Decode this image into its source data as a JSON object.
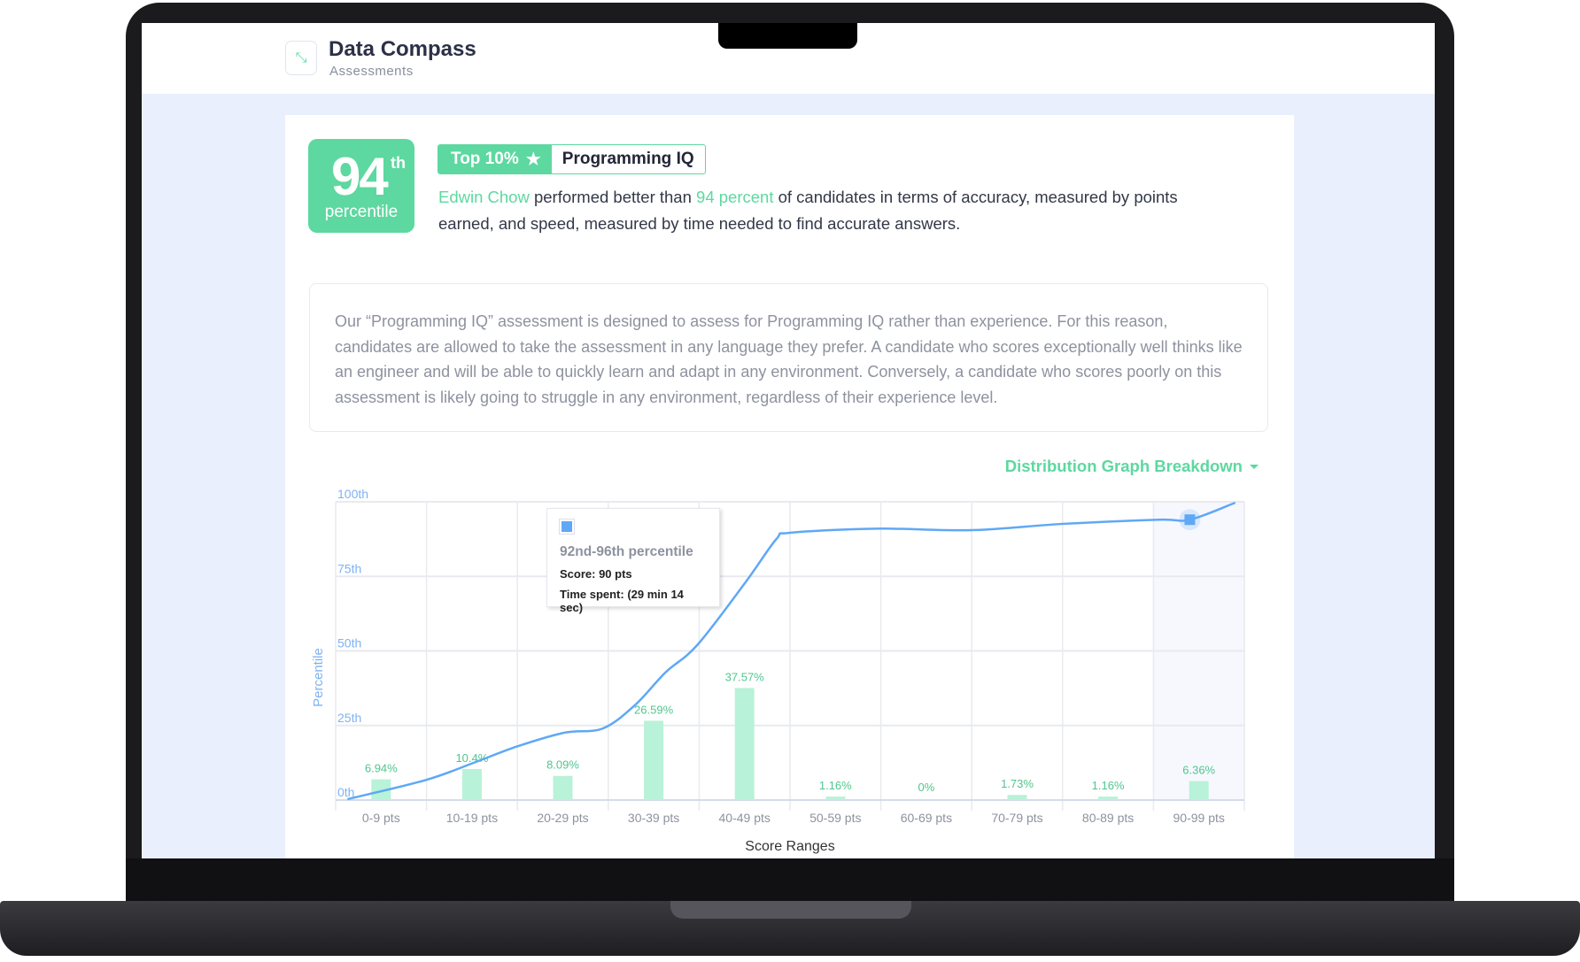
{
  "app": {
    "title": "Data Compass",
    "subtitle": "Assessments",
    "logo_icon": "compass-arrows-icon"
  },
  "result": {
    "percentile_number": "94",
    "percentile_suffix": "th",
    "percentile_label": "percentile",
    "tag_top": "Top 10%",
    "tag_icon": "star-icon",
    "assessment_name": "Programming IQ",
    "candidate_name": "Edwin Chow",
    "summary_part1": " performed better than ",
    "summary_highlight": "94 percent",
    "summary_part2": " of candidates in terms of accuracy, measured by points earned, and speed, measured by time needed to find accurate answers."
  },
  "description": "Our “Programming IQ” assessment is designed to assess for Programming IQ rather than experience. For this reason, candidates are allowed to take the assessment in any language they prefer. A candidate who scores exceptionally well thinks like an engineer and will be able to quickly learn and adapt in any environment. Conversely, a candidate who scores poorly on this assessment is likely going to struggle in any environment, regardless of their experience level.",
  "dropdown_label": "Distribution Graph Breakdown",
  "tooltip": {
    "title": "92nd-96th percentile",
    "score": "Score: 90 pts",
    "time": "Time spent: (29 min 14 sec)"
  },
  "colors": {
    "accent": "#5dd8a0",
    "bar": "#b8f2d8",
    "line": "#5fa8f5",
    "background": "#e9effc"
  },
  "chart_data": {
    "type": "bar",
    "xlabel": "Score Ranges",
    "ylabel": "Percentile",
    "ylim": [
      0,
      100
    ],
    "yticks": [
      "0th",
      "25th",
      "50th",
      "75th",
      "100th"
    ],
    "grid": true,
    "categories": [
      "0-9 pts",
      "10-19 pts",
      "20-29 pts",
      "30-39 pts",
      "40-49 pts",
      "50-59 pts",
      "60-69 pts",
      "70-79 pts",
      "80-89 pts",
      "90-99 pts"
    ],
    "values": [
      6.94,
      10.4,
      8.09,
      26.59,
      37.57,
      1.16,
      0,
      1.73,
      1.16,
      6.36
    ],
    "value_labels": [
      "6.94%",
      "10.4%",
      "8.09%",
      "26.59%",
      "37.57%",
      "1.16%",
      "0%",
      "1.73%",
      "1.16%",
      "6.36%"
    ],
    "highlighted_category": "90-99 pts",
    "line": {
      "type": "line",
      "x": [
        1.3,
        9.9,
        15.2,
        20,
        25.2,
        29.4,
        33,
        36.3,
        39.8,
        45.1,
        48.5,
        50,
        59.5,
        70,
        80,
        90.6,
        94,
        99
      ],
      "y": [
        0.3,
        6.7,
        12.5,
        18,
        22.6,
        24,
        32,
        42.8,
        52,
        73,
        87.5,
        89.6,
        91,
        90.5,
        92.6,
        94,
        94,
        99.7
      ],
      "marker": {
        "x": 94,
        "y": 94
      }
    }
  }
}
